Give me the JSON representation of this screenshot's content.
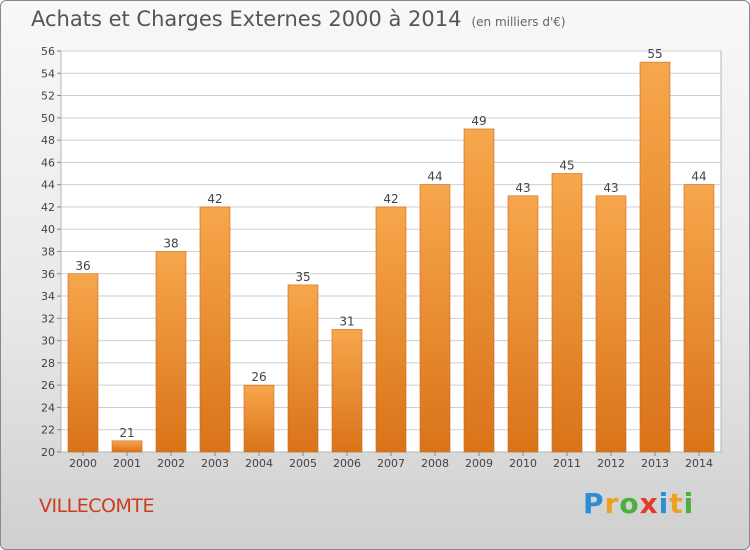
{
  "title": "Achats et Charges Externes 2000 à 2014",
  "subtitle": "(en milliers d'€)",
  "place": "VILLECOMTE",
  "logo": {
    "letters": [
      "P",
      "r",
      "o",
      "x",
      "i",
      "t",
      "i"
    ],
    "colors": [
      "#2a8fd4",
      "#f0a020",
      "#4cae3c",
      "#e23b2a",
      "#2a8fd4",
      "#f0a020",
      "#4cae3c"
    ]
  },
  "colors": {
    "bar_light": "#f7a74c",
    "bar_dark": "#d9731a",
    "grid": "#cfcfcf",
    "axis_text": "#444444"
  },
  "chart_data": {
    "type": "bar",
    "categories": [
      "2000",
      "2001",
      "2002",
      "2003",
      "2004",
      "2005",
      "2006",
      "2007",
      "2008",
      "2009",
      "2010",
      "2011",
      "2012",
      "2013",
      "2014"
    ],
    "values": [
      36,
      21,
      38,
      42,
      26,
      35,
      31,
      42,
      44,
      49,
      43,
      45,
      43,
      55,
      44
    ],
    "ylim": [
      20,
      56
    ],
    "yticks": [
      20,
      22,
      24,
      26,
      28,
      30,
      32,
      34,
      36,
      38,
      40,
      42,
      44,
      46,
      48,
      50,
      52,
      54,
      56
    ],
    "grid": true,
    "data_labels": true,
    "xlabel": "",
    "ylabel": ""
  }
}
